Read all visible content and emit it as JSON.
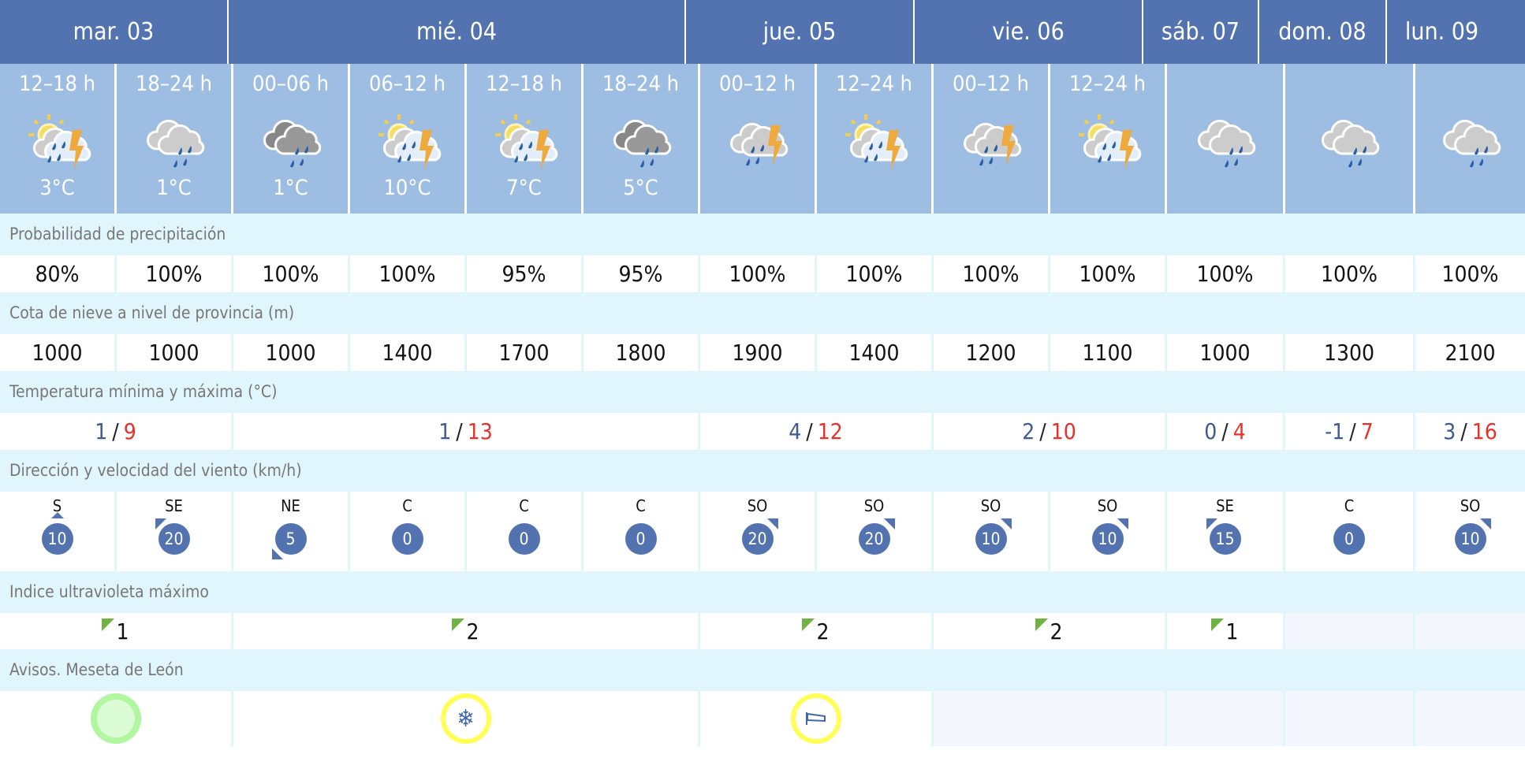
{
  "days": [
    {
      "label": "mar. 03",
      "periods": 2,
      "tmin": "1",
      "tmax": "9",
      "uv": "1",
      "aviso": "green"
    },
    {
      "label": "mié. 04",
      "periods": 4,
      "tmin": "1",
      "tmax": "13",
      "uv": "2",
      "aviso": "snow"
    },
    {
      "label": "jue. 05",
      "periods": 2,
      "tmin": "4",
      "tmax": "12",
      "uv": "2",
      "aviso": "wind"
    },
    {
      "label": "vie. 06",
      "periods": 2,
      "tmin": "2",
      "tmax": "10",
      "uv": "2",
      "aviso": null
    },
    {
      "label": "sáb. 07",
      "periods": 1,
      "tmin": "0",
      "tmax": "4",
      "uv": "1",
      "aviso": null
    },
    {
      "label": "dom. 08",
      "periods": 1,
      "tmin": "-1",
      "tmax": "7",
      "uv": null,
      "aviso": null
    },
    {
      "label": "lun. 09",
      "periods": 1,
      "tmin": "3",
      "tmax": "16",
      "uv": null,
      "aviso": null
    }
  ],
  "temp_separator": "/",
  "periods": [
    {
      "label": "12–18 h",
      "icon": "sun-cloud-storm",
      "temp": "3°C",
      "precip": "80%",
      "snow": "1000",
      "wind_dir": "S",
      "wind_speed": "10"
    },
    {
      "label": "18–24 h",
      "icon": "cloud-rain",
      "temp": "1°C",
      "precip": "100%",
      "snow": "1000",
      "wind_dir": "SE",
      "wind_speed": "20"
    },
    {
      "label": "00–06 h",
      "icon": "dark-cloud-rain",
      "temp": "1°C",
      "precip": "100%",
      "snow": "1000",
      "wind_dir": "NE",
      "wind_speed": "5"
    },
    {
      "label": "06–12 h",
      "icon": "sun-cloud-storm",
      "temp": "10°C",
      "precip": "100%",
      "snow": "1400",
      "wind_dir": "C",
      "wind_speed": "0"
    },
    {
      "label": "12–18 h",
      "icon": "sun-cloud-storm",
      "temp": "7°C",
      "precip": "95%",
      "snow": "1700",
      "wind_dir": "C",
      "wind_speed": "0"
    },
    {
      "label": "18–24 h",
      "icon": "dark-cloud-rain",
      "temp": "5°C",
      "precip": "95%",
      "snow": "1800",
      "wind_dir": "C",
      "wind_speed": "0"
    },
    {
      "label": "00–12 h",
      "icon": "cloud-storm",
      "temp": "",
      "precip": "100%",
      "snow": "1900",
      "wind_dir": "SO",
      "wind_speed": "20"
    },
    {
      "label": "12–24 h",
      "icon": "sun-cloud-storm",
      "temp": "",
      "precip": "100%",
      "snow": "1400",
      "wind_dir": "SO",
      "wind_speed": "20"
    },
    {
      "label": "00–12 h",
      "icon": "cloud-storm",
      "temp": "",
      "precip": "100%",
      "snow": "1200",
      "wind_dir": "SO",
      "wind_speed": "10"
    },
    {
      "label": "12–24 h",
      "icon": "sun-cloud-storm",
      "temp": "",
      "precip": "100%",
      "snow": "1100",
      "wind_dir": "SO",
      "wind_speed": "10"
    },
    {
      "label": "",
      "icon": "cloud-rain",
      "temp": "",
      "precip": "100%",
      "snow": "1000",
      "wind_dir": "SE",
      "wind_speed": "15"
    },
    {
      "label": "",
      "icon": "cloud-rain",
      "temp": "",
      "precip": "100%",
      "snow": "1300",
      "wind_dir": "C",
      "wind_speed": "0"
    },
    {
      "label": "",
      "icon": "cloud-rain",
      "temp": "",
      "precip": "100%",
      "snow": "2100",
      "wind_dir": "SO",
      "wind_speed": "10"
    }
  ],
  "sections": {
    "precip": "Probabilidad de precipitación",
    "snow": "Cota de nieve a nivel de provincia (m)",
    "temp": "Temperatura mínima y máxima (°C)",
    "wind": "Dirección y velocidad del viento (km/h)",
    "uv": "Indice ultravioleta máximo",
    "avisos": "Avisos. Meseta de León"
  },
  "colors": {
    "header": "#5273b0",
    "period_bg": "#9dbde3",
    "section_bg": "#e0f5fc",
    "temp_min": "#3d5a94",
    "temp_max": "#e8312a",
    "uv_low": "#6fb443",
    "aviso_green": "#b0f7a0",
    "aviso_yellow": "#ffff55"
  }
}
